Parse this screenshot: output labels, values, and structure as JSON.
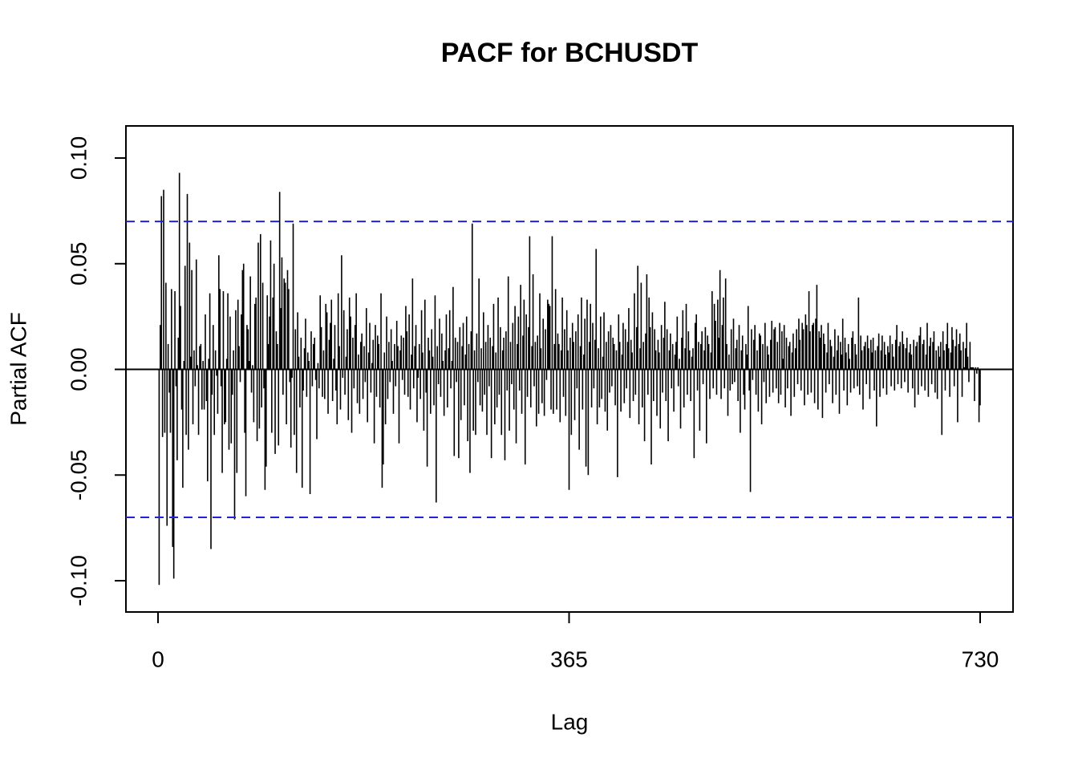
{
  "chart_data": {
    "type": "pacf",
    "title": "PACF for BCHUSDT",
    "x_label": "Lag",
    "y_label": "Partial ACF",
    "color": "#000000",
    "conf_color": "#2020e0",
    "conf_limits": [
      0.07,
      -0.07
    ],
    "xlim": [
      -28.5,
      759.2
    ],
    "ylim": [
      -0.1148,
      0.1152
    ],
    "xticks": [
      0,
      365,
      730
    ],
    "yticks": [
      {
        "value": -0.1,
        "label": "-0.10"
      },
      -0.05,
      {
        "value": 0,
        "label": "0.00"
      },
      0.05,
      {
        "value": 0.1,
        "label": "0.10"
      }
    ],
    "x": [
      1,
      2,
      3,
      4,
      5,
      6,
      7,
      8,
      9,
      10,
      11,
      12,
      13,
      14,
      15,
      16,
      17,
      18,
      19,
      20,
      21,
      22,
      23,
      24,
      25,
      26,
      27,
      28,
      29,
      30,
      31,
      32,
      33,
      34,
      35,
      36,
      37,
      38,
      39,
      40,
      41,
      42,
      43,
      44,
      45,
      46,
      47,
      48,
      49,
      50,
      51,
      52,
      53,
      54,
      55,
      56,
      57,
      58,
      59,
      60,
      61,
      62,
      63,
      64,
      65,
      66,
      67,
      68,
      69,
      70,
      71,
      72,
      73,
      74,
      75,
      76,
      77,
      78,
      79,
      80,
      81,
      82,
      83,
      84,
      85,
      86,
      87,
      88,
      89,
      90,
      91,
      92,
      93,
      94,
      95,
      96,
      97,
      98,
      99,
      100,
      101,
      102,
      103,
      104,
      105,
      106,
      107,
      108,
      109,
      110,
      111,
      112,
      113,
      114,
      115,
      116,
      117,
      118,
      119,
      120,
      121,
      122,
      123,
      124,
      125,
      126,
      127,
      128,
      129,
      130,
      131,
      132,
      133,
      134,
      135,
      136,
      137,
      138,
      139,
      140,
      141,
      142,
      143,
      144,
      145,
      146,
      147,
      148,
      149,
      150,
      151,
      152,
      153,
      154,
      155,
      156,
      157,
      158,
      159,
      160,
      161,
      162,
      163,
      164,
      165,
      166,
      167,
      168,
      169,
      170,
      171,
      172,
      173,
      174,
      175,
      176,
      177,
      178,
      179,
      180,
      181,
      182,
      183,
      184,
      185,
      186,
      187,
      188,
      189,
      190,
      191,
      192,
      193,
      194,
      195,
      196,
      197,
      198,
      199,
      200,
      201,
      202,
      203,
      204,
      205,
      206,
      207,
      208,
      209,
      210,
      211,
      212,
      213,
      214,
      215,
      216,
      217,
      218,
      219,
      220,
      221,
      222,
      223,
      224,
      225,
      226,
      227,
      228,
      229,
      230,
      231,
      232,
      233,
      234,
      235,
      236,
      237,
      238,
      239,
      240,
      241,
      242,
      243,
      244,
      245,
      246,
      247,
      248,
      249,
      250,
      251,
      252,
      253,
      254,
      255,
      256,
      257,
      258,
      259,
      260,
      261,
      262,
      263,
      264,
      265,
      266,
      267,
      268,
      269,
      270,
      271,
      272,
      273,
      274,
      275,
      276,
      277,
      278,
      279,
      280,
      281,
      282,
      283,
      284,
      285,
      286,
      287,
      288,
      289,
      290,
      291,
      292,
      293,
      294,
      295,
      296,
      297,
      298,
      299,
      300,
      301,
      302,
      303,
      304,
      305,
      306,
      307,
      308,
      309,
      310,
      311,
      312,
      313,
      314,
      315,
      316,
      317,
      318,
      319,
      320,
      321,
      322,
      323,
      324,
      325,
      326,
      327,
      328,
      329,
      330,
      331,
      332,
      333,
      334,
      335,
      336,
      337,
      338,
      339,
      340,
      341,
      342,
      343,
      344,
      345,
      346,
      347,
      348,
      349,
      350,
      351,
      352,
      353,
      354,
      355,
      356,
      357,
      358,
      359,
      360,
      361,
      362,
      363,
      364,
      365,
      366,
      367,
      368,
      369,
      370,
      371,
      372,
      373,
      374,
      375,
      376,
      377,
      378,
      379,
      380,
      381,
      382,
      383,
      384,
      385,
      386,
      387,
      388,
      389,
      390,
      391,
      392,
      393,
      394,
      395,
      396,
      397,
      398,
      399,
      400,
      401,
      402,
      403,
      404,
      405,
      406,
      407,
      408,
      409,
      410,
      411,
      412,
      413,
      414,
      415,
      416,
      417,
      418,
      419,
      420,
      421,
      422,
      423,
      424,
      425,
      426,
      427,
      428,
      429,
      430,
      431,
      432,
      433,
      434,
      435,
      436,
      437,
      438,
      439,
      440,
      441,
      442,
      443,
      444,
      445,
      446,
      447,
      448,
      449,
      450,
      451,
      452,
      453,
      454,
      455,
      456,
      457,
      458,
      459,
      460,
      461,
      462,
      463,
      464,
      465,
      466,
      467,
      468,
      469,
      470,
      471,
      472,
      473,
      474,
      475,
      476,
      477,
      478,
      479,
      480,
      481,
      482,
      483,
      484,
      485,
      486,
      487,
      488,
      489,
      490,
      491,
      492,
      493,
      494,
      495,
      496,
      497,
      498,
      499,
      500,
      501,
      502,
      503,
      504,
      505,
      506,
      507,
      508,
      509,
      510,
      511,
      512,
      513,
      514,
      515,
      516,
      517,
      518,
      519,
      520,
      521,
      522,
      523,
      524,
      525,
      526,
      527,
      528,
      529,
      530,
      531,
      532,
      533,
      534,
      535,
      536,
      537,
      538,
      539,
      540,
      541,
      542,
      543,
      544,
      545,
      546,
      547,
      548,
      549,
      550,
      551,
      552,
      553,
      554,
      555,
      556,
      557,
      558,
      559,
      560,
      561,
      562,
      563,
      564,
      565,
      566,
      567,
      568,
      569,
      570,
      571,
      572,
      573,
      574,
      575,
      576,
      577,
      578,
      579,
      580,
      581,
      582,
      583,
      584,
      585,
      586,
      587,
      588,
      589,
      590,
      591,
      592,
      593,
      594,
      595,
      596,
      597,
      598,
      599,
      600,
      601,
      602,
      603,
      604,
      605,
      606,
      607,
      608,
      609,
      610,
      611,
      612,
      613,
      614,
      615,
      616,
      617,
      618,
      619,
      620,
      621,
      622,
      623,
      624,
      625,
      626,
      627,
      628,
      629,
      630,
      631,
      632,
      633,
      634,
      635,
      636,
      637,
      638,
      639,
      640,
      641,
      642,
      643,
      644,
      645,
      646,
      647,
      648,
      649,
      650,
      651,
      652,
      653,
      654,
      655,
      656,
      657,
      658,
      659,
      660,
      661,
      662,
      663,
      664,
      665,
      666,
      667,
      668,
      669,
      670,
      671,
      672,
      673,
      674,
      675,
      676,
      677,
      678,
      679,
      680,
      681,
      682,
      683,
      684,
      685,
      686,
      687,
      688,
      689,
      690,
      691,
      692,
      693,
      694,
      695,
      696,
      697,
      698,
      699,
      700,
      701,
      702,
      703,
      704,
      705,
      706,
      707,
      708,
      709,
      710,
      711,
      712,
      713,
      714,
      715,
      716,
      717,
      718,
      719,
      720,
      721,
      722,
      723,
      724,
      725,
      726,
      727,
      728,
      729,
      730
    ],
    "values": [
      -0.102,
      0.021,
      0.082,
      -0.032,
      0.085,
      -0.03,
      0.041,
      -0.074,
      0.012,
      -0.011,
      -0.03,
      0.038,
      -0.084,
      -0.099,
      0.037,
      -0.008,
      -0.043,
      0.015,
      0.093,
      0.03,
      -0.019,
      -0.056,
      0.004,
      0.049,
      -0.031,
      0.083,
      -0.038,
      0.06,
      0.006,
      0.047,
      -0.026,
      0.009,
      -0.008,
      0.052,
      0.002,
      -0.031,
      0.011,
      0.012,
      -0.019,
      0.004,
      -0.019,
      0.026,
      -0.015,
      -0.053,
      0.005,
      0.036,
      -0.085,
      -0.012,
      0.021,
      -0.031,
      0.009,
      -0.003,
      -0.021,
      0.054,
      0.038,
      -0.008,
      -0.049,
      0.037,
      -0.026,
      -0.025,
      0.005,
      0.036,
      -0.038,
      0.025,
      -0.035,
      -0.012,
      0.009,
      -0.071,
      0.028,
      -0.049,
      0.033,
      0.011,
      -0.006,
      0.026,
      0.047,
      0.05,
      -0.03,
      -0.06,
      0.021,
      0.019,
      0.004,
      0.044,
      -0.011,
      0.002,
      -0.025,
      0.031,
      0.034,
      -0.034,
      0.06,
      -0.028,
      0.064,
      -0.018,
      0.041,
      -0.009,
      -0.057,
      -0.046,
      0.035,
      0.012,
      0.025,
      0.061,
      -0.03,
      0.034,
      0.05,
      -0.04,
      0.018,
      0.012,
      -0.036,
      0.084,
      0.029,
      0.053,
      -0.012,
      0.043,
      0.041,
      -0.026,
      0.047,
      0.038,
      -0.006,
      -0.037,
      -0.004,
      0.069,
      -0.031,
      0.019,
      -0.049,
      0.027,
      0.006,
      -0.018,
      0.015,
      -0.056,
      -0.01,
      0.01,
      0.024,
      -0.013,
      0.008,
      0.004,
      -0.059,
      0.018,
      -0.008,
      0.012,
      0.015,
      -0.005,
      -0.033,
      0.003,
      -0.009,
      0.035,
      0.02,
      -0.013,
      0.009,
      -0.014,
      0.031,
      0.027,
      -0.021,
      0.014,
      0.022,
      0.033,
      -0.015,
      0.005,
      0.021,
      -0.01,
      -0.026,
      0.036,
      0.011,
      -0.019,
      0.054,
      -0.004,
      0.028,
      -0.012,
      0.006,
      0.019,
      -0.024,
      0.034,
      0.025,
      -0.03,
      0.015,
      -0.009,
      0.021,
      0.036,
      -0.016,
      0.007,
      -0.021,
      0.013,
      0.017,
      -0.014,
      0.011,
      -0.006,
      0.029,
      -0.025,
      0.008,
      0.022,
      -0.011,
      0.003,
      0.014,
      -0.035,
      0.021,
      -0.013,
      0.016,
      0.012,
      -0.018,
      0.036,
      -0.056,
      -0.045,
      0.008,
      -0.026,
      0.025,
      -0.014,
      0.013,
      -0.006,
      0.019,
      0.004,
      -0.021,
      0.012,
      -0.008,
      0.023,
      0.011,
      -0.035,
      0.009,
      0.016,
      -0.005,
      0.015,
      -0.012,
      0.03,
      0.018,
      -0.013,
      0.026,
      -0.019,
      0.007,
      0.043,
      -0.009,
      0.011,
      0.021,
      -0.025,
      -0.004,
      0.012,
      -0.014,
      0.028,
      0.008,
      -0.029,
      0.033,
      -0.011,
      -0.046,
      0.015,
      0.009,
      -0.021,
      0.019,
      0.006,
      -0.017,
      0.035,
      -0.063,
      0.011,
      -0.007,
      0.024,
      -0.013,
      0.017,
      0.004,
      -0.022,
      0.009,
      0.026,
      -0.018,
      0.01,
      0.028,
      -0.009,
      0.004,
      0.039,
      -0.041,
      0.015,
      -0.006,
      0.013,
      -0.042,
      0.02,
      -0.024,
      0.011,
      0.022,
      -0.017,
      0.007,
      0.025,
      -0.034,
      0.012,
      -0.049,
      0.018,
      0.069,
      -0.029,
      0.009,
      -0.031,
      0.017,
      -0.006,
      0.043,
      -0.017,
      0.01,
      -0.02,
      0.027,
      -0.012,
      0.013,
      -0.031,
      0.021,
      -0.008,
      0.015,
      -0.042,
      0.011,
      0.031,
      -0.026,
      0.008,
      -0.018,
      0.034,
      -0.012,
      0.02,
      -0.031,
      0.009,
      0.015,
      -0.043,
      0.018,
      -0.01,
      0.044,
      -0.029,
      0.013,
      -0.007,
      0.022,
      -0.019,
      0.03,
      -0.035,
      0.012,
      0.025,
      -0.01,
      0.04,
      -0.021,
      0.016,
      0.033,
      -0.045,
      0.026,
      -0.013,
      0.02,
      0.063,
      -0.018,
      0.011,
      0.045,
      -0.008,
      0.013,
      -0.027,
      0.016,
      -0.021,
      0.036,
      0.01,
      -0.016,
      0.024,
      -0.022,
      0.019,
      -0.005,
      0.033,
      0.031,
      0.03,
      -0.019,
      0.063,
      -0.021,
      0.012,
      0.038,
      -0.019,
      0.017,
      0.012,
      -0.025,
      0.009,
      0.034,
      -0.013,
      0.019,
      -0.022,
      0.028,
      0.009,
      -0.057,
      0.015,
      -0.031,
      0.022,
      0.013,
      -0.024,
      0.018,
      -0.009,
      0.026,
      -0.038,
      0.011,
      0.034,
      -0.019,
      0.007,
      0.024,
      -0.046,
      0.033,
      -0.05,
      0.013,
      0.031,
      -0.018,
      0.022,
      -0.009,
      0.014,
      0.057,
      -0.026,
      0.01,
      -0.018,
      0.025,
      -0.014,
      0.006,
      0.027,
      -0.02,
      0.013,
      -0.029,
      0.018,
      -0.011,
      0.021,
      -0.008,
      0.015,
      0.012,
      -0.017,
      0.009,
      -0.051,
      0.026,
      0.013,
      -0.02,
      0.007,
      0.022,
      -0.016,
      0.019,
      -0.009,
      0.013,
      0.029,
      -0.023,
      0.014,
      0.008,
      -0.015,
      0.036,
      -0.012,
      0.02,
      0.049,
      -0.026,
      0.01,
      0.041,
      -0.018,
      0.013,
      -0.034,
      0.017,
      0.045,
      -0.012,
      0.034,
      0.02,
      -0.045,
      0.027,
      -0.015,
      0.019,
      0.009,
      -0.022,
      0.014,
      0.008,
      -0.028,
      0.021,
      -0.011,
      0.015,
      0.032,
      -0.015,
      0.019,
      -0.034,
      0.009,
      0.017,
      -0.009,
      0.012,
      -0.02,
      0.007,
      0.013,
      0.025,
      -0.008,
      0.005,
      -0.028,
      0.015,
      0.028,
      -0.018,
      0.01,
      0.031,
      -0.012,
      0.018,
      0.009,
      -0.015,
      0.006,
      0.01,
      -0.042,
      0.022,
      0.026,
      -0.01,
      0.013,
      -0.029,
      0.012,
      0.018,
      -0.007,
      0.009,
      0.02,
      -0.035,
      0.016,
      0.012,
      -0.014,
      0.008,
      0.037,
      -0.009,
      0.031,
      0.023,
      -0.012,
      0.033,
      0.015,
      0.047,
      -0.014,
      0.021,
      0.034,
      -0.009,
      0.043,
      0.012,
      -0.022,
      0.007,
      -0.01,
      0.019,
      -0.007,
      0.024,
      -0.006,
      0.01,
      0.014,
      -0.015,
      0.021,
      -0.03,
      0.009,
      0.016,
      -0.012,
      -0.019,
      0.012,
      0.007,
      0.03,
      -0.01,
      -0.058,
      0.019,
      -0.005,
      0.014,
      0.021,
      -0.012,
      0.009,
      -0.02,
      0.017,
      0.016,
      -0.026,
      0.012,
      -0.006,
      0.022,
      -0.016,
      0.011,
      0.007,
      -0.013,
      0.014,
      0.023,
      -0.011,
      0.019,
      0.02,
      -0.009,
      0.013,
      -0.016,
      0.022,
      -0.012,
      0.018,
      0.005,
      0.021,
      -0.018,
      0.015,
      -0.009,
      0.011,
      0.013,
      -0.022,
      0.008,
      0.017,
      -0.013,
      0.01,
      0.019,
      -0.007,
      0.024,
      0.014,
      -0.01,
      0.022,
      0.019,
      -0.017,
      0.026,
      0.021,
      -0.012,
      0.037,
      0.018,
      -0.011,
      0.021,
      0.022,
      -0.016,
      0.024,
      0.04,
      -0.019,
      0.018,
      0.015,
      0.021,
      -0.023,
      0.017,
      0.012,
      -0.011,
      0.008,
      0.022,
      -0.007,
      0.014,
      0.011,
      -0.016,
      0.006,
      0.019,
      -0.012,
      0.009,
      0.016,
      -0.021,
      0.013,
      0.007,
      0.024,
      -0.01,
      0.015,
      0.008,
      -0.017,
      0.012,
      0.005,
      -0.011,
      0.015,
      0.018,
      -0.009,
      0.012,
      0.007,
      -0.008,
      0.034,
      -0.012,
      0.016,
      0.009,
      -0.019,
      0.011,
      0.013,
      -0.007,
      0.016,
      0.01,
      -0.014,
      0.014,
      0.008,
      0.015,
      -0.01,
      0.009,
      -0.027,
      0.011,
      0.017,
      -0.013,
      0.009,
      0.016,
      -0.009,
      0.013,
      0.007,
      -0.012,
      0.011,
      0.008,
      0.016,
      -0.008,
      0.012,
      0.006,
      -0.01,
      0.014,
      0.021,
      -0.007,
      0.011,
      0.013,
      -0.009,
      0.018,
      0.012,
      -0.006,
      0.01,
      0.015,
      -0.011,
      0.008,
      0.012,
      0.007,
      -0.009,
      0.014,
      -0.018,
      0.011,
      0.013,
      -0.012,
      0.016,
      0.02,
      -0.008,
      0.012,
      0.014,
      -0.01,
      0.007,
      0.022,
      -0.013,
      0.011,
      0.015,
      -0.007,
      0.013,
      0.018,
      -0.011,
      0.009,
      -0.014,
      0.011,
      0.006,
      0.013,
      -0.031,
      0.018,
      0.009,
      -0.01,
      0.012,
      0.022,
      0.01,
      -0.013,
      0.008,
      0.02,
      0.014,
      -0.008,
      0.011,
      0.019,
      -0.025,
      0.012,
      0.017,
      0.009,
      -0.013,
      0.013,
      0.001,
      0.01,
      0.022,
      0.006,
      -0.006,
      0.013,
      0.001,
      0.001,
      0.001,
      -0.015,
      0.001,
      -0.002,
      0.001,
      -0.025,
      -0.017
    ]
  }
}
